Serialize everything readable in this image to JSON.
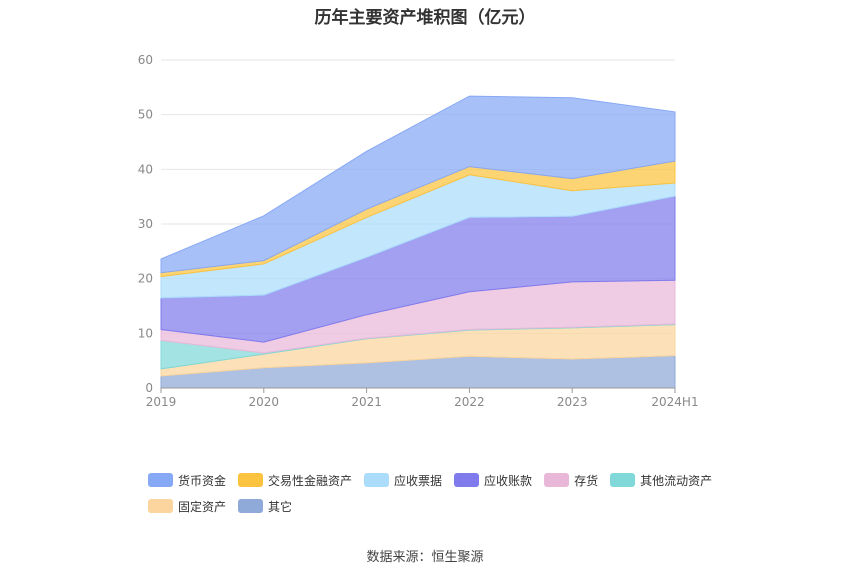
{
  "title": "历年主要资产堆积图（亿元）",
  "source": "数据来源：恒生聚源",
  "chart_data": {
    "type": "area",
    "stacked": true,
    "categories": [
      "2019",
      "2020",
      "2021",
      "2022",
      "2023",
      "2024H1"
    ],
    "ylim": [
      0,
      60
    ],
    "yticks": [
      0,
      10,
      20,
      30,
      40,
      50,
      60
    ],
    "grid": true,
    "legend_position": "bottom",
    "series": [
      {
        "name": "其它",
        "color": "#8fa9d8",
        "values": [
          2.2,
          3.7,
          4.6,
          5.8,
          5.3,
          5.9
        ]
      },
      {
        "name": "固定资产",
        "color": "#fbd59d",
        "values": [
          1.3,
          2.5,
          4.4,
          4.8,
          5.7,
          5.7
        ]
      },
      {
        "name": "其他流动资产",
        "color": "#80d8d8",
        "values": [
          5.2,
          0.2,
          0.1,
          0.1,
          0.1,
          0.1
        ]
      },
      {
        "name": "存货",
        "color": "#e9b8d9",
        "values": [
          2.0,
          2.0,
          4.3,
          6.9,
          8.3,
          8.0
        ]
      },
      {
        "name": "应收账款",
        "color": "#7f7bed",
        "values": [
          5.8,
          8.6,
          10.5,
          13.6,
          12.0,
          15.4
        ]
      },
      {
        "name": "应收票据",
        "color": "#abdcfb",
        "values": [
          3.9,
          5.7,
          7.3,
          7.8,
          4.7,
          2.4
        ]
      },
      {
        "name": "交易性金融资产",
        "color": "#fbc33f",
        "values": [
          0.7,
          0.6,
          1.5,
          1.5,
          2.2,
          4.0
        ]
      },
      {
        "name": "货币资金",
        "color": "#87a8f5",
        "values": [
          2.5,
          8.2,
          10.6,
          12.9,
          14.8,
          9.0
        ]
      }
    ]
  },
  "legend_order": [
    "货币资金",
    "交易性金融资产",
    "应收票据",
    "应收账款",
    "存货",
    "其他流动资产",
    "固定资产",
    "其它"
  ]
}
